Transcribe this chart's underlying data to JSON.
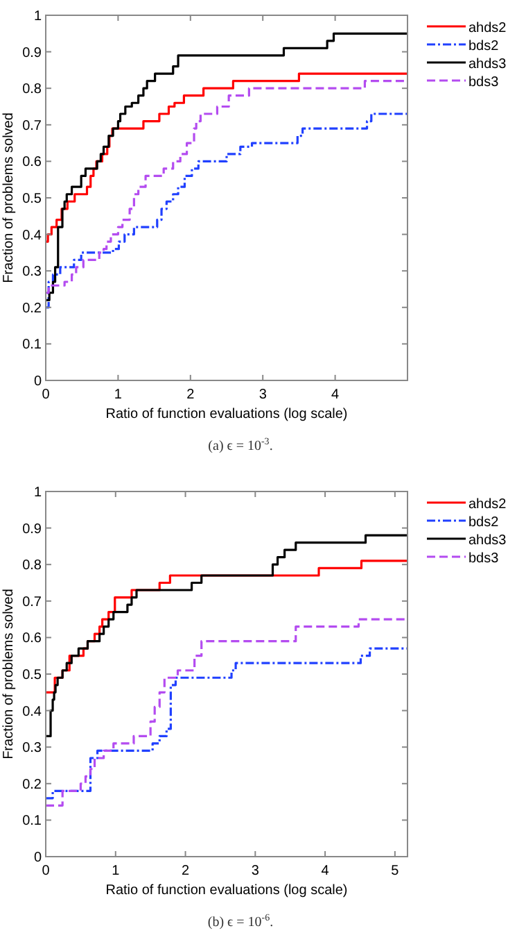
{
  "chart_data": [
    {
      "type": "step",
      "xlabel": "Ratio of function evaluations (log scale)",
      "ylabel": "Fraction of problems solved",
      "annotations": [
        "(a) ϵ = 10$^{-3}$."
      ],
      "xlim": [
        0,
        5
      ],
      "xticks": [
        0,
        1,
        2,
        3,
        4
      ],
      "ylim": [
        0,
        1
      ],
      "yticks": [
        0,
        0.1,
        0.2,
        0.3,
        0.4,
        0.5,
        0.6,
        0.7,
        0.8,
        0.9,
        1
      ],
      "legend": "right",
      "grid": false,
      "series": [
        {
          "name": "ahds2",
          "color": "#ff0000",
          "line_style": "solid",
          "x": [
            0,
            0.03,
            0.08,
            0.15,
            0.22,
            0.3,
            0.4,
            0.57,
            0.62,
            0.66,
            0.7,
            0.78,
            0.85,
            0.88,
            0.92,
            1.35,
            1.57,
            1.7,
            1.78,
            1.91,
            2.18,
            2.59,
            3.5,
            5
          ],
          "values": [
            0.38,
            0.4,
            0.42,
            0.44,
            0.47,
            0.49,
            0.51,
            0.53,
            0.56,
            0.58,
            0.6,
            0.62,
            0.64,
            0.67,
            0.69,
            0.71,
            0.73,
            0.75,
            0.76,
            0.78,
            0.8,
            0.82,
            0.84,
            0.84
          ]
        },
        {
          "name": "bds2",
          "color": "#2040ff",
          "line_style": "dashdot",
          "x": [
            0,
            0.04,
            0.1,
            0.2,
            0.39,
            0.49,
            0.93,
            1.01,
            1.09,
            1.22,
            1.54,
            1.6,
            1.67,
            1.76,
            1.83,
            1.92,
            2.02,
            2.11,
            2.5,
            2.69,
            2.85,
            3.48,
            3.55,
            4.44,
            4.5,
            5
          ],
          "values": [
            0.2,
            0.27,
            0.29,
            0.31,
            0.33,
            0.35,
            0.36,
            0.38,
            0.4,
            0.42,
            0.44,
            0.47,
            0.49,
            0.51,
            0.53,
            0.56,
            0.58,
            0.6,
            0.62,
            0.64,
            0.65,
            0.67,
            0.69,
            0.71,
            0.73,
            0.73
          ]
        },
        {
          "name": "ahds3",
          "color": "#000000",
          "line_style": "solid",
          "x": [
            0.01,
            0.05,
            0.1,
            0.13,
            0.17,
            0.23,
            0.26,
            0.29,
            0.36,
            0.49,
            0.55,
            0.71,
            0.76,
            0.8,
            0.87,
            0.93,
            1,
            1.03,
            1.1,
            1.19,
            1.28,
            1.35,
            1.4,
            1.51,
            1.76,
            1.83,
            3.29,
            3.89,
            3.98,
            5
          ],
          "values": [
            0.22,
            0.24,
            0.27,
            0.31,
            0.42,
            0.47,
            0.49,
            0.51,
            0.53,
            0.56,
            0.58,
            0.6,
            0.62,
            0.64,
            0.67,
            0.69,
            0.71,
            0.73,
            0.75,
            0.76,
            0.78,
            0.8,
            0.82,
            0.84,
            0.86,
            0.89,
            0.91,
            0.93,
            0.95,
            0.95
          ]
        },
        {
          "name": "bds3",
          "color": "#b44cf0",
          "line_style": "dashed",
          "x": [
            0,
            0.04,
            0.26,
            0.36,
            0.42,
            0.52,
            0.74,
            0.8,
            0.84,
            0.9,
            1,
            1.06,
            1.16,
            1.22,
            1.28,
            1.38,
            1.63,
            1.76,
            1.86,
            1.95,
            2.05,
            2.08,
            2.14,
            2.37,
            2.53,
            2.81,
            4.41,
            5
          ],
          "values": [
            0.24,
            0.26,
            0.27,
            0.29,
            0.31,
            0.33,
            0.35,
            0.36,
            0.38,
            0.4,
            0.42,
            0.44,
            0.47,
            0.51,
            0.53,
            0.56,
            0.58,
            0.6,
            0.62,
            0.65,
            0.69,
            0.71,
            0.73,
            0.75,
            0.78,
            0.8,
            0.82,
            0.82
          ]
        }
      ]
    },
    {
      "type": "step",
      "xlabel": "Ratio of function evaluations (log scale)",
      "ylabel": "Fraction of problems solved",
      "annotations": [
        "(b) ϵ = 10$^{-6}$."
      ],
      "xlim": [
        0,
        5.18
      ],
      "xticks": [
        0,
        1,
        2,
        3,
        4,
        5
      ],
      "ylim": [
        0,
        1
      ],
      "yticks": [
        0,
        0.1,
        0.2,
        0.3,
        0.4,
        0.5,
        0.6,
        0.7,
        0.8,
        0.9,
        1
      ],
      "legend": "right",
      "grid": false,
      "series": [
        {
          "name": "ahds2",
          "color": "#ff0000",
          "line_style": "solid",
          "x": [
            0,
            0.13,
            0.24,
            0.34,
            0.54,
            0.6,
            0.7,
            0.77,
            0.81,
            0.9,
            0.99,
            1.23,
            1.63,
            1.78,
            3.91,
            4.52,
            5.18
          ],
          "values": [
            0.45,
            0.49,
            0.51,
            0.55,
            0.57,
            0.59,
            0.61,
            0.63,
            0.65,
            0.67,
            0.71,
            0.73,
            0.75,
            0.77,
            0.79,
            0.81,
            0.81
          ]
        },
        {
          "name": "bds2",
          "color": "#2040ff",
          "line_style": "dashdot",
          "x": [
            0,
            0.1,
            0.64,
            0.74,
            1.53,
            1.63,
            1.73,
            1.79,
            1.86,
            2.66,
            2.72,
            4.51,
            4.64,
            5.18
          ],
          "values": [
            0.16,
            0.18,
            0.27,
            0.29,
            0.31,
            0.33,
            0.35,
            0.47,
            0.49,
            0.51,
            0.53,
            0.55,
            0.57,
            0.57
          ]
        },
        {
          "name": "ahds3",
          "color": "#000000",
          "line_style": "solid",
          "x": [
            0,
            0.07,
            0.1,
            0.12,
            0.14,
            0.17,
            0.24,
            0.3,
            0.37,
            0.47,
            0.6,
            0.77,
            0.83,
            0.9,
            0.97,
            1.17,
            1.23,
            1.3,
            2.09,
            2.23,
            3.25,
            3.32,
            3.42,
            3.58,
            4.58,
            5.18
          ],
          "values": [
            0.33,
            0.4,
            0.43,
            0.45,
            0.47,
            0.49,
            0.51,
            0.53,
            0.55,
            0.57,
            0.59,
            0.61,
            0.63,
            0.65,
            0.67,
            0.69,
            0.71,
            0.73,
            0.75,
            0.77,
            0.8,
            0.82,
            0.84,
            0.86,
            0.88,
            0.88
          ]
        },
        {
          "name": "bds3",
          "color": "#b44cf0",
          "line_style": "dashed",
          "x": [
            0,
            0.24,
            0.5,
            0.57,
            0.64,
            0.7,
            0.83,
            0.97,
            1.26,
            1.5,
            1.56,
            1.63,
            1.7,
            1.89,
            2.13,
            2.23,
            3.58,
            4.48,
            5.18
          ],
          "values": [
            0.14,
            0.18,
            0.2,
            0.22,
            0.24,
            0.27,
            0.29,
            0.31,
            0.33,
            0.37,
            0.41,
            0.45,
            0.49,
            0.51,
            0.55,
            0.59,
            0.63,
            0.65,
            0.65
          ]
        }
      ]
    }
  ]
}
